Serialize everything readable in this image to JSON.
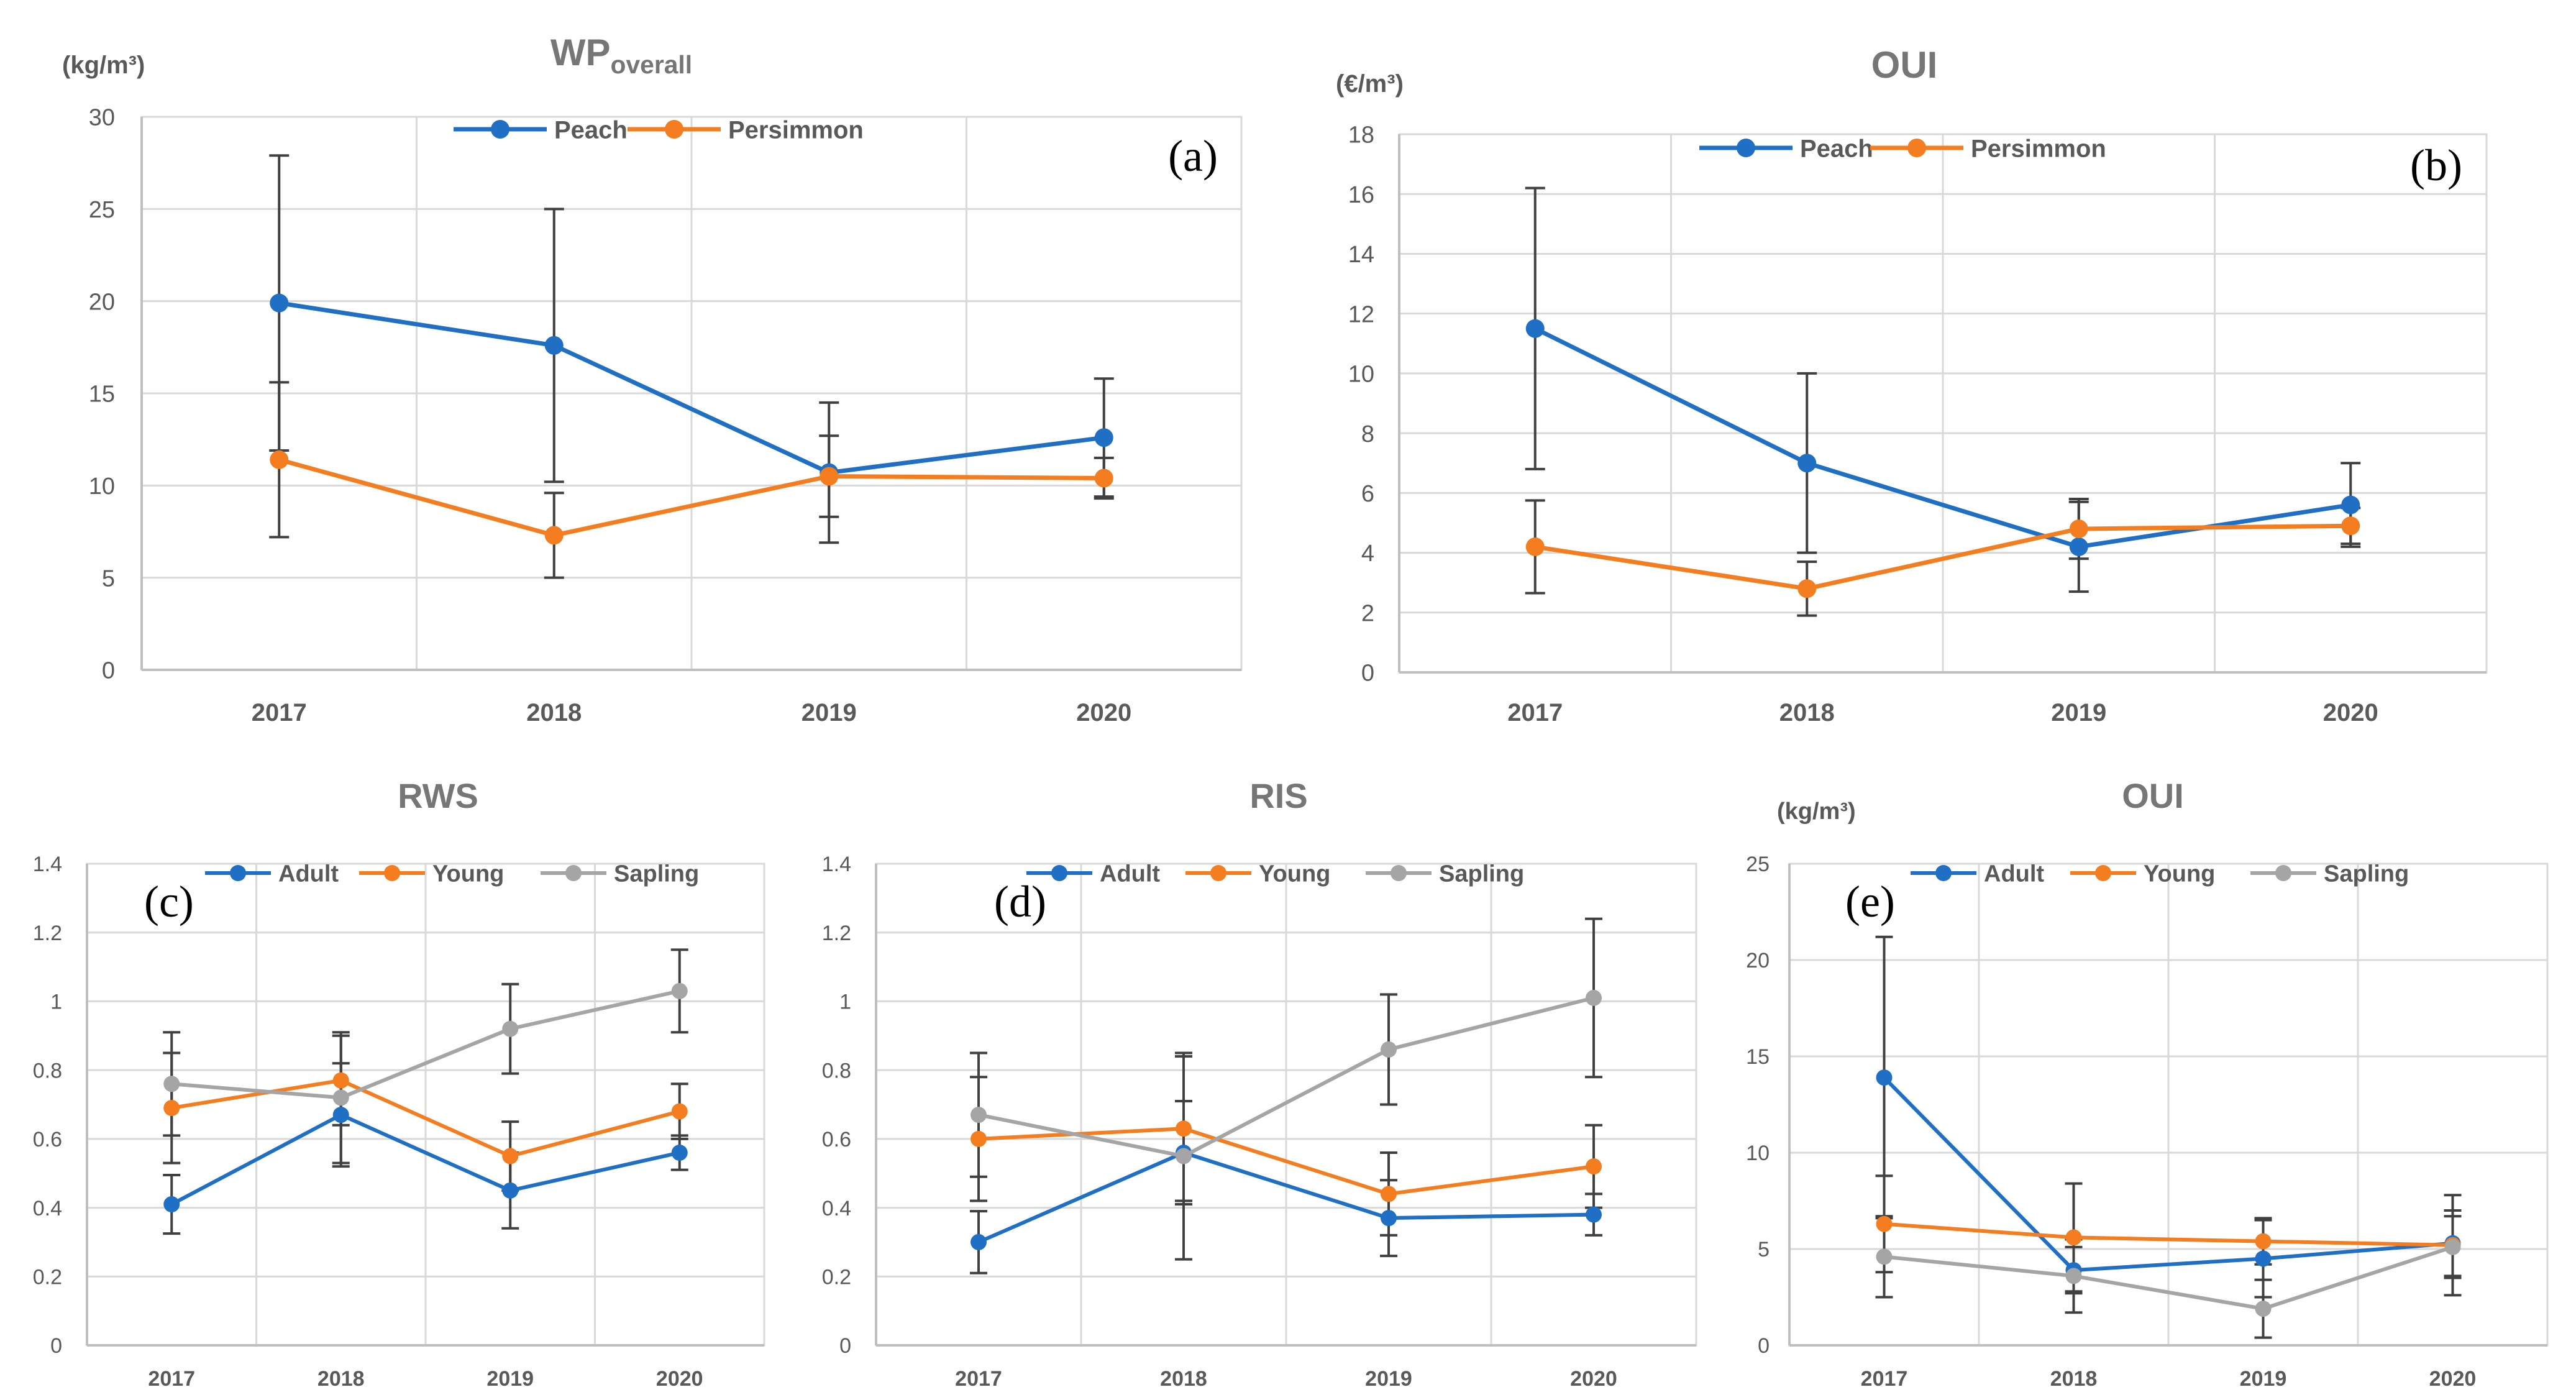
{
  "colors": {
    "blue": "#1f6fc5",
    "orange": "#f47d20",
    "gray": "#a5a5a5",
    "errorbar": "#404040",
    "grid": "#d9d9d9",
    "axis": "#bfbfbf"
  },
  "chart_data": [
    {
      "id": "a",
      "type": "line",
      "title_main": "WP",
      "title_sub": "overall",
      "ylabel": "(kg/m³)",
      "panel_label": "(a)",
      "categories": [
        "2017",
        "2018",
        "2019",
        "2020"
      ],
      "ylim": [
        0,
        30
      ],
      "yticks": [
        0,
        5,
        10,
        15,
        20,
        25,
        30
      ],
      "ytick_labels": [
        "0",
        "5",
        "10",
        "15",
        "20",
        "25",
        "30"
      ],
      "series": [
        {
          "name": "Peach",
          "color": "blue",
          "values": [
            19.9,
            17.6,
            10.7,
            12.6
          ],
          "errors": [
            8.0,
            7.4,
            3.8,
            3.2
          ]
        },
        {
          "name": "Persimmon",
          "color": "orange",
          "values": [
            11.4,
            7.3,
            10.5,
            10.4
          ],
          "errors": [
            4.2,
            2.3,
            2.2,
            1.1
          ]
        }
      ]
    },
    {
      "id": "b",
      "type": "line",
      "title_main": "OUI",
      "title_sub": "",
      "ylabel": "(€/m³)",
      "panel_label": "(b)",
      "categories": [
        "2017",
        "2018",
        "2019",
        "2020"
      ],
      "ylim": [
        0,
        18
      ],
      "yticks": [
        0,
        2,
        4,
        6,
        8,
        10,
        12,
        14,
        16,
        18
      ],
      "ytick_labels": [
        "0",
        "2",
        "4",
        "6",
        "8",
        "10",
        "12",
        "14",
        "16",
        "18"
      ],
      "series": [
        {
          "name": "Peach",
          "color": "blue",
          "values": [
            11.5,
            7.0,
            4.2,
            5.6
          ],
          "errors": [
            4.7,
            3.0,
            1.5,
            1.4
          ]
        },
        {
          "name": "Persimmon",
          "color": "orange",
          "values": [
            4.2,
            2.8,
            4.8,
            4.9
          ],
          "errors": [
            1.55,
            0.9,
            1.0,
            0.6
          ]
        }
      ]
    },
    {
      "id": "c",
      "type": "line",
      "title_main": "RWS",
      "title_sub": "",
      "ylabel": "",
      "panel_label": "(c)",
      "categories": [
        "2017",
        "2018",
        "2019",
        "2020"
      ],
      "ylim": [
        0,
        1.4
      ],
      "yticks": [
        0,
        0.2,
        0.4,
        0.6,
        0.8,
        1.0,
        1.2,
        1.4
      ],
      "ytick_labels": [
        "0",
        "0.2",
        "0.4",
        "0.6",
        "0.8",
        "1",
        "1.2",
        "1.4"
      ],
      "series": [
        {
          "name": "Adult",
          "color": "blue",
          "values": [
            0.41,
            0.67,
            0.45,
            0.56
          ],
          "errors": [
            0.085,
            0.15,
            0.11,
            0.05
          ]
        },
        {
          "name": "Young",
          "color": "orange",
          "values": [
            0.69,
            0.77,
            0.55,
            0.68
          ],
          "errors": [
            0.16,
            0.13,
            0.1,
            0.08
          ]
        },
        {
          "name": "Sapling",
          "color": "gray",
          "values": [
            0.76,
            0.72,
            0.92,
            1.03
          ],
          "errors": [
            0.15,
            0.19,
            0.13,
            0.12
          ]
        }
      ]
    },
    {
      "id": "d",
      "type": "line",
      "title_main": "RIS",
      "title_sub": "",
      "ylabel": "",
      "panel_label": "(d)",
      "categories": [
        "2017",
        "2018",
        "2019",
        "2020"
      ],
      "ylim": [
        0,
        1.4
      ],
      "yticks": [
        0,
        0.2,
        0.4,
        0.6,
        0.8,
        1.0,
        1.2,
        1.4
      ],
      "ytick_labels": [
        "0",
        "0.2",
        "0.4",
        "0.6",
        "0.8",
        "1",
        "1.2",
        "1.4"
      ],
      "series": [
        {
          "name": "Adult",
          "color": "blue",
          "values": [
            0.3,
            0.56,
            0.37,
            0.38
          ],
          "errors": [
            0.09,
            0.15,
            0.11,
            0.06
          ]
        },
        {
          "name": "Young",
          "color": "orange",
          "values": [
            0.6,
            0.63,
            0.44,
            0.52
          ],
          "errors": [
            0.18,
            0.21,
            0.12,
            0.12
          ]
        },
        {
          "name": "Sapling",
          "color": "gray",
          "values": [
            0.67,
            0.55,
            0.86,
            1.01
          ],
          "errors": [
            0.18,
            0.3,
            0.16,
            0.23
          ]
        }
      ]
    },
    {
      "id": "e",
      "type": "line",
      "title_main": "OUI",
      "title_sub": "",
      "ylabel": "(kg/m³)",
      "panel_label": "(e)",
      "categories": [
        "2017",
        "2018",
        "2019",
        "2020"
      ],
      "ylim": [
        0,
        25
      ],
      "yticks": [
        0,
        5,
        10,
        15,
        20,
        25
      ],
      "ytick_labels": [
        "0",
        "5",
        "10",
        "15",
        "20",
        "25"
      ],
      "series": [
        {
          "name": "Adult",
          "color": "blue",
          "values": [
            13.9,
            3.9,
            4.5,
            5.3
          ],
          "errors": [
            7.3,
            1.2,
            2.0,
            1.7
          ]
        },
        {
          "name": "Young",
          "color": "orange",
          "values": [
            6.3,
            5.6,
            5.4,
            5.2
          ],
          "errors": [
            2.5,
            2.8,
            1.2,
            2.6
          ]
        },
        {
          "name": "Sapling",
          "color": "gray",
          "values": [
            4.6,
            3.6,
            1.9,
            5.1
          ],
          "errors": [
            2.1,
            1.9,
            1.5,
            1.6
          ]
        }
      ]
    }
  ]
}
